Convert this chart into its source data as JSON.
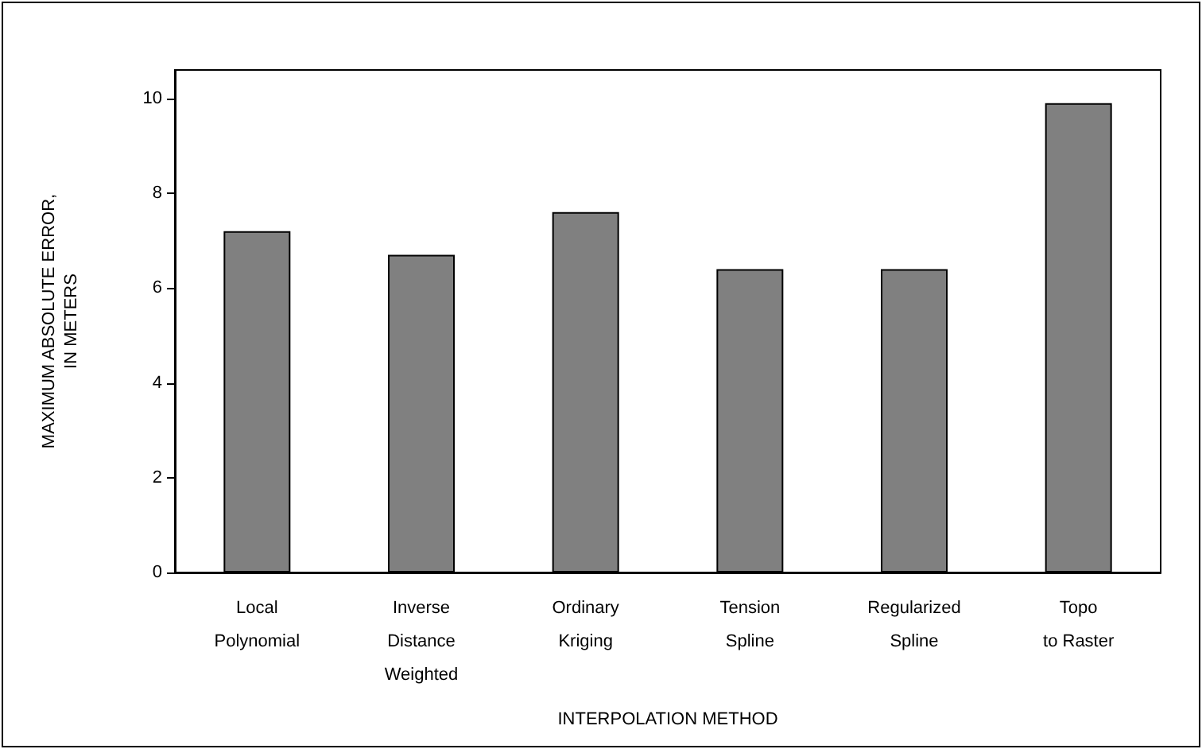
{
  "chart_data": {
    "type": "bar",
    "xlabel": "INTERPOLATION METHOD",
    "ylabel": "MAXIMUM ABSOLUTE ERROR,\nIN METERS",
    "categories": [
      "Local\nPolynomial",
      "Inverse\nDistance\nWeighted",
      "Ordinary\nKriging",
      "Tension\nSpline",
      "Regularized\nSpline",
      "Topo\nto Raster"
    ],
    "values": [
      7.2,
      6.7,
      7.6,
      6.4,
      6.4,
      9.9
    ],
    "color": "#808080",
    "ylim": [
      0,
      10.6
    ],
    "yticks": [
      0,
      2,
      4,
      6,
      8,
      10
    ],
    "grid": false
  }
}
